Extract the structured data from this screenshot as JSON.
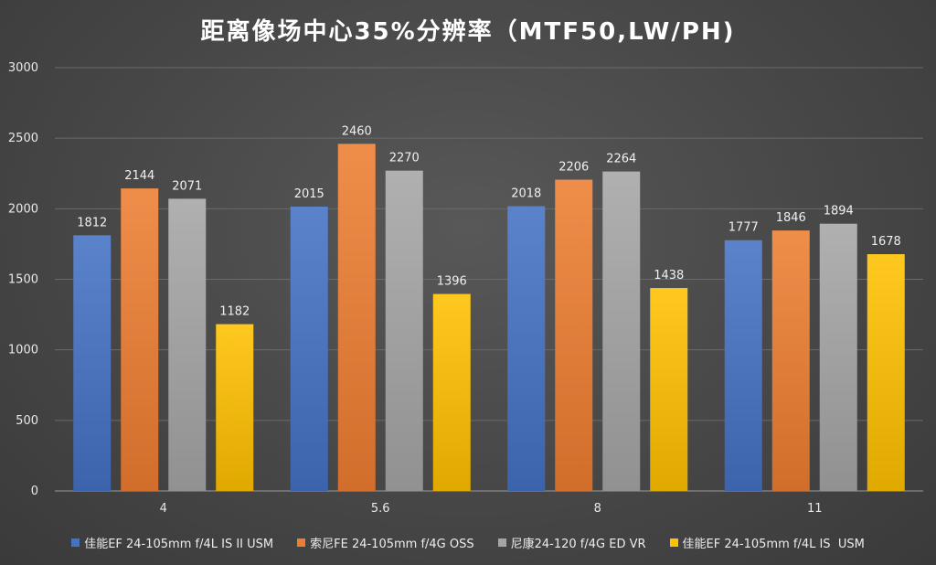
{
  "chart_data": {
    "type": "bar",
    "title": "距离像场中心35%分辨率（MTF50,LW/PH)",
    "xlabel": "",
    "ylabel": "",
    "categories": [
      "4",
      "5.6",
      "8",
      "11"
    ],
    "ylim": [
      0,
      3000
    ],
    "yticks": [
      0,
      500,
      1000,
      1500,
      2000,
      2500,
      3000
    ],
    "grid": true,
    "legend_position": "bottom",
    "series": [
      {
        "name": "佳能EF 24-105mm f/4L IS II USM",
        "color": "#4472c4",
        "values": [
          1812,
          2015,
          2018,
          1777
        ]
      },
      {
        "name": "索尼FE 24-105mm f/4G OSS",
        "color": "#ed7d31",
        "values": [
          2144,
          2460,
          2206,
          1846
        ]
      },
      {
        "name": "尼康24-120 f/4G ED VR",
        "color": "#a5a5a5",
        "values": [
          2071,
          2270,
          2264,
          1894
        ]
      },
      {
        "name": "佳能EF 24-105mm f/4L IS  USM",
        "color": "#ffc000",
        "values": [
          1182,
          1396,
          1438,
          1678
        ]
      }
    ]
  }
}
